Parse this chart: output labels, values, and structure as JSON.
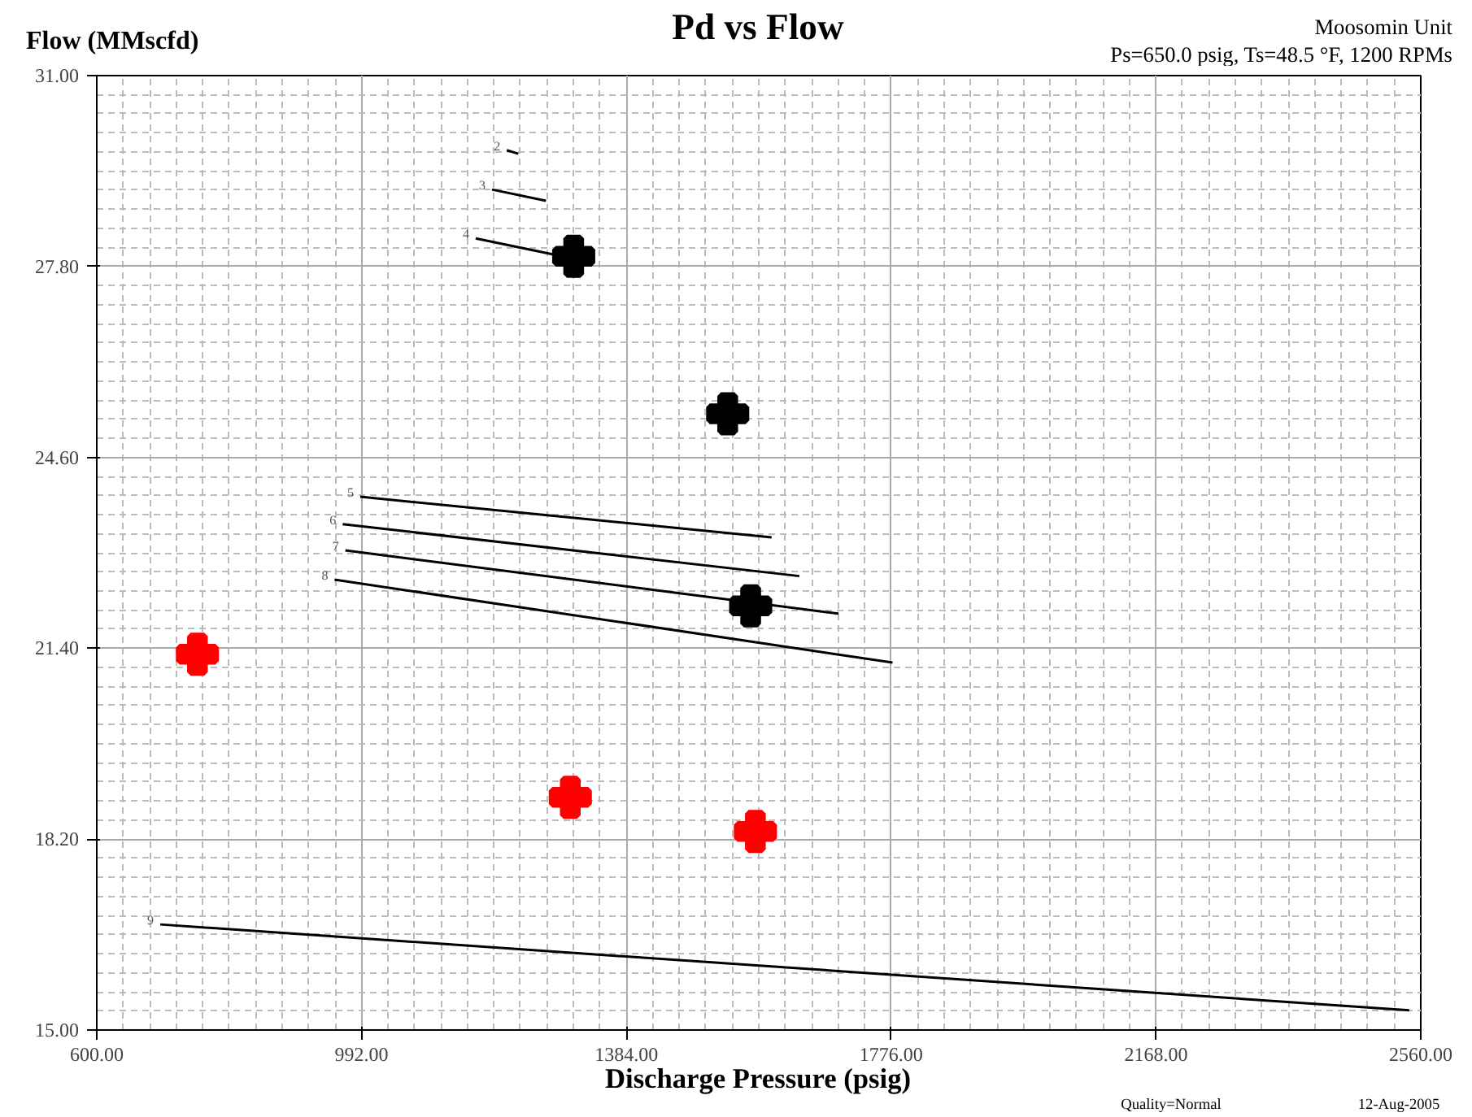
{
  "chart_data": {
    "type": "line",
    "title": "Pd vs Flow",
    "xlabel": "Discharge Pressure (psig)",
    "ylabel": "Flow (MMscfd)",
    "annotations": [
      "Moosomin Unit",
      "Ps=650.0 psig, Ts=48.5 °F, 1200 RPMs",
      "Quality=Normal",
      "12-Aug-2005"
    ],
    "xlim": [
      600,
      2560
    ],
    "ylim": [
      15,
      31
    ],
    "xticks": [
      {
        "value": 600,
        "label": "600.00"
      },
      {
        "value": 992,
        "label": "992.00"
      },
      {
        "value": 1384,
        "label": "1384.00"
      },
      {
        "value": 1776,
        "label": "1776.00"
      },
      {
        "value": 2168,
        "label": "2168.00"
      },
      {
        "value": 2560,
        "label": "2560.00"
      }
    ],
    "yticks": [
      {
        "value": 15,
        "label": "15.00"
      },
      {
        "value": 18.2,
        "label": "18.20"
      },
      {
        "value": 21.4,
        "label": "21.40"
      },
      {
        "value": 24.6,
        "label": "24.60"
      },
      {
        "value": 27.8,
        "label": "27.80"
      },
      {
        "value": 31,
        "label": "31.00"
      }
    ],
    "grid": true,
    "line_style": "solid",
    "series": [
      {
        "name": "2",
        "color": "#000000",
        "x": [
          1207,
          1224
        ],
        "values": [
          29.75,
          29.69
        ]
      },
      {
        "name": "3",
        "color": "#000000",
        "x": [
          1185,
          1265
        ],
        "values": [
          29.09,
          28.9
        ]
      },
      {
        "name": "4",
        "color": "#000000",
        "x": [
          1161,
          1289
        ],
        "values": [
          28.27,
          27.97
        ]
      },
      {
        "name": "5",
        "color": "#000000",
        "x": [
          990,
          1599
        ],
        "values": [
          23.94,
          23.26
        ]
      },
      {
        "name": "6",
        "color": "#000000",
        "x": [
          964,
          1640
        ],
        "values": [
          23.48,
          22.61
        ]
      },
      {
        "name": "7",
        "color": "#000000",
        "x": [
          968,
          1698
        ],
        "values": [
          23.04,
          21.98
        ]
      },
      {
        "name": "8",
        "color": "#000000",
        "x": [
          952,
          1778
        ],
        "values": [
          22.55,
          21.16
        ]
      },
      {
        "name": "9",
        "color": "#000000",
        "x": [
          694,
          2543
        ],
        "values": [
          16.77,
          15.33
        ]
      },
      {
        "type": "scatter",
        "marker": "cross",
        "color": "#000000",
        "x": [
          1306,
          1534,
          1568
        ],
        "values": [
          27.97,
          25.33,
          22.11
        ]
      },
      {
        "type": "scatter",
        "marker": "cross",
        "color": "#ff0000",
        "x": [
          749,
          1301,
          1575
        ],
        "values": [
          21.3,
          18.9,
          18.33
        ]
      }
    ]
  }
}
